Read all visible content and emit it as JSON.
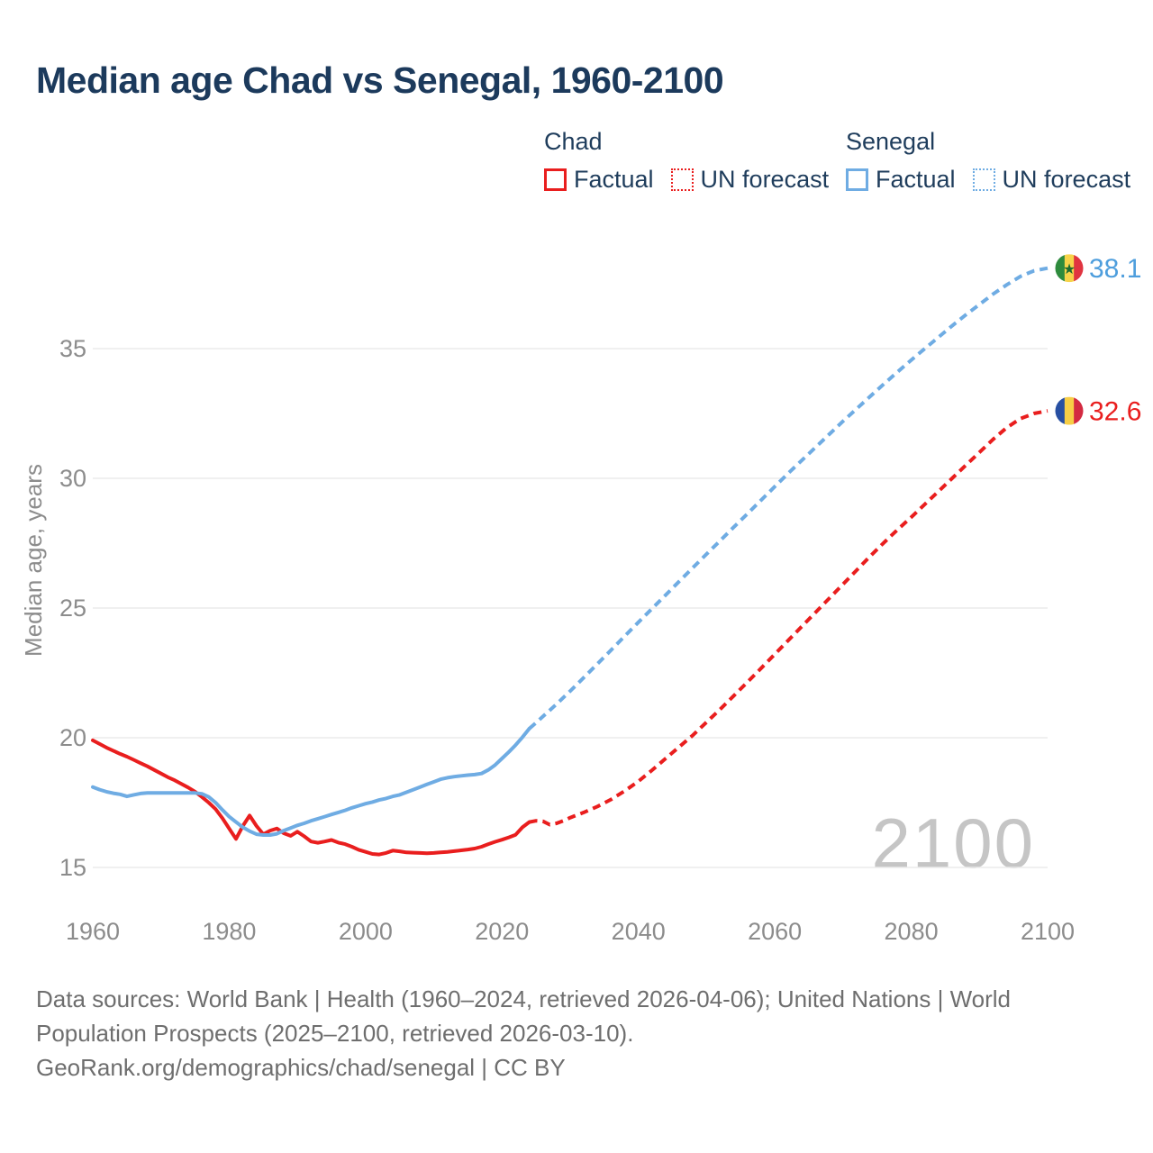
{
  "title": "Median age Chad vs Senegal, 1960-2100",
  "watermark": "2100",
  "footer": {
    "line1": "Data sources: World Bank | Health (1960–2024, retrieved 2026-04-06); United Nations | World",
    "line2": "Population Prospects (2025–2100, retrieved 2026-03-10).",
    "line3": "GeoRank.org/demographics/chad/senegal | CC BY"
  },
  "colors": {
    "chad_red": "#E91E1E",
    "senegal_blue": "#6FACE3",
    "senegal_label_blue": "#4E9EDD",
    "navy_text": "#1C3A5C",
    "gridline": "#ECECEC",
    "tick_text": "#8C8C8C",
    "footer_text": "#6E6E6E",
    "watermark_gray": "#C5C5C5"
  },
  "legend": {
    "groups": [
      {
        "name": "Chad",
        "color": "#E91E1E",
        "items": [
          {
            "label": "Factual",
            "style": "solid"
          },
          {
            "label": "UN forecast",
            "style": "dotted"
          }
        ]
      },
      {
        "name": "Senegal",
        "color": "#6FACE3",
        "items": [
          {
            "label": "Factual",
            "style": "solid"
          },
          {
            "label": "UN forecast",
            "style": "dotted"
          }
        ]
      }
    ]
  },
  "chart_data": {
    "type": "line",
    "title": "Median age Chad vs Senegal, 1960-2100",
    "xlabel": "",
    "ylabel": "Median age, years",
    "x_ticks": [
      1960,
      1980,
      2000,
      2020,
      2040,
      2060,
      2080,
      2100
    ],
    "y_ticks": [
      15,
      20,
      25,
      30,
      35
    ],
    "xlim": [
      1960,
      2100
    ],
    "ylim": [
      15,
      35
    ],
    "grid": "horizontal-only",
    "legend_position": "top-right",
    "series": [
      {
        "name": "Chad factual",
        "color": "#E91E1E",
        "dashed": false,
        "points": [
          [
            1960,
            19.9
          ],
          [
            1961,
            19.76
          ],
          [
            1962,
            19.62
          ],
          [
            1963,
            19.5
          ],
          [
            1964,
            19.38
          ],
          [
            1965,
            19.27
          ],
          [
            1966,
            19.15
          ],
          [
            1967,
            19.02
          ],
          [
            1968,
            18.9
          ],
          [
            1969,
            18.76
          ],
          [
            1970,
            18.62
          ],
          [
            1971,
            18.48
          ],
          [
            1972,
            18.36
          ],
          [
            1973,
            18.22
          ],
          [
            1974,
            18.08
          ],
          [
            1975,
            17.92
          ],
          [
            1976,
            17.72
          ],
          [
            1977,
            17.5
          ],
          [
            1978,
            17.25
          ],
          [
            1979,
            16.9
          ],
          [
            1980,
            16.5
          ],
          [
            1981,
            16.1
          ],
          [
            1982,
            16.6
          ],
          [
            1983,
            17.0
          ],
          [
            1984,
            16.6
          ],
          [
            1985,
            16.28
          ],
          [
            1986,
            16.42
          ],
          [
            1987,
            16.5
          ],
          [
            1988,
            16.32
          ],
          [
            1989,
            16.22
          ],
          [
            1990,
            16.38
          ],
          [
            1991,
            16.2
          ],
          [
            1992,
            16.0
          ],
          [
            1993,
            15.95
          ],
          [
            1994,
            16.0
          ],
          [
            1995,
            16.06
          ],
          [
            1996,
            15.96
          ],
          [
            1997,
            15.9
          ],
          [
            1998,
            15.8
          ],
          [
            1999,
            15.68
          ],
          [
            2000,
            15.6
          ],
          [
            2001,
            15.52
          ],
          [
            2002,
            15.5
          ],
          [
            2003,
            15.56
          ],
          [
            2004,
            15.65
          ],
          [
            2005,
            15.62
          ],
          [
            2006,
            15.58
          ],
          [
            2007,
            15.57
          ],
          [
            2008,
            15.56
          ],
          [
            2009,
            15.55
          ],
          [
            2010,
            15.56
          ],
          [
            2011,
            15.58
          ],
          [
            2012,
            15.6
          ],
          [
            2013,
            15.63
          ],
          [
            2014,
            15.66
          ],
          [
            2015,
            15.69
          ],
          [
            2016,
            15.73
          ],
          [
            2017,
            15.8
          ],
          [
            2018,
            15.9
          ],
          [
            2019,
            15.99
          ],
          [
            2020,
            16.07
          ],
          [
            2021,
            16.16
          ],
          [
            2022,
            16.26
          ],
          [
            2023,
            16.55
          ],
          [
            2024,
            16.75
          ]
        ]
      },
      {
        "name": "Chad UN forecast",
        "color": "#E91E1E",
        "dashed": true,
        "points": [
          [
            2024,
            16.75
          ],
          [
            2025,
            16.8
          ],
          [
            2026,
            16.78
          ],
          [
            2027,
            16.65
          ],
          [
            2028,
            16.7
          ],
          [
            2029,
            16.8
          ],
          [
            2030,
            16.92
          ],
          [
            2032,
            17.12
          ],
          [
            2034,
            17.35
          ],
          [
            2036,
            17.62
          ],
          [
            2038,
            17.95
          ],
          [
            2040,
            18.32
          ],
          [
            2042,
            18.75
          ],
          [
            2044,
            19.2
          ],
          [
            2046,
            19.65
          ],
          [
            2048,
            20.1
          ],
          [
            2050,
            20.6
          ],
          [
            2052,
            21.1
          ],
          [
            2054,
            21.62
          ],
          [
            2056,
            22.15
          ],
          [
            2058,
            22.68
          ],
          [
            2060,
            23.22
          ],
          [
            2062,
            23.76
          ],
          [
            2064,
            24.3
          ],
          [
            2066,
            24.84
          ],
          [
            2068,
            25.38
          ],
          [
            2070,
            25.92
          ],
          [
            2072,
            26.46
          ],
          [
            2074,
            27.0
          ],
          [
            2076,
            27.52
          ],
          [
            2078,
            28.02
          ],
          [
            2080,
            28.5
          ],
          [
            2082,
            29.0
          ],
          [
            2084,
            29.5
          ],
          [
            2086,
            30.0
          ],
          [
            2088,
            30.5
          ],
          [
            2090,
            31.0
          ],
          [
            2092,
            31.5
          ],
          [
            2094,
            31.95
          ],
          [
            2096,
            32.3
          ],
          [
            2098,
            32.5
          ],
          [
            2100,
            32.6
          ]
        ]
      },
      {
        "name": "Senegal factual",
        "color": "#6FACE3",
        "dashed": false,
        "points": [
          [
            1960,
            18.1
          ],
          [
            1961,
            18.0
          ],
          [
            1962,
            17.92
          ],
          [
            1963,
            17.86
          ],
          [
            1964,
            17.82
          ],
          [
            1965,
            17.74
          ],
          [
            1966,
            17.8
          ],
          [
            1967,
            17.85
          ],
          [
            1968,
            17.87
          ],
          [
            1969,
            17.87
          ],
          [
            1970,
            17.87
          ],
          [
            1971,
            17.87
          ],
          [
            1972,
            17.87
          ],
          [
            1973,
            17.87
          ],
          [
            1974,
            17.87
          ],
          [
            1975,
            17.87
          ],
          [
            1976,
            17.84
          ],
          [
            1977,
            17.72
          ],
          [
            1978,
            17.5
          ],
          [
            1979,
            17.22
          ],
          [
            1980,
            16.96
          ],
          [
            1981,
            16.75
          ],
          [
            1982,
            16.55
          ],
          [
            1983,
            16.4
          ],
          [
            1984,
            16.28
          ],
          [
            1985,
            16.25
          ],
          [
            1986,
            16.25
          ],
          [
            1987,
            16.3
          ],
          [
            1988,
            16.42
          ],
          [
            1989,
            16.52
          ],
          [
            1990,
            16.62
          ],
          [
            1991,
            16.7
          ],
          [
            1992,
            16.8
          ],
          [
            1993,
            16.88
          ],
          [
            1994,
            16.96
          ],
          [
            1995,
            17.04
          ],
          [
            1996,
            17.12
          ],
          [
            1997,
            17.2
          ],
          [
            1998,
            17.3
          ],
          [
            1999,
            17.38
          ],
          [
            2000,
            17.46
          ],
          [
            2001,
            17.52
          ],
          [
            2002,
            17.6
          ],
          [
            2003,
            17.66
          ],
          [
            2004,
            17.74
          ],
          [
            2005,
            17.8
          ],
          [
            2006,
            17.9
          ],
          [
            2007,
            18.0
          ],
          [
            2008,
            18.1
          ],
          [
            2009,
            18.2
          ],
          [
            2010,
            18.3
          ],
          [
            2011,
            18.4
          ],
          [
            2012,
            18.46
          ],
          [
            2013,
            18.5
          ],
          [
            2014,
            18.53
          ],
          [
            2015,
            18.56
          ],
          [
            2016,
            18.58
          ],
          [
            2017,
            18.62
          ],
          [
            2018,
            18.76
          ],
          [
            2019,
            18.95
          ],
          [
            2020,
            19.2
          ],
          [
            2021,
            19.45
          ],
          [
            2022,
            19.72
          ],
          [
            2023,
            20.02
          ],
          [
            2024,
            20.35
          ]
        ]
      },
      {
        "name": "Senegal UN forecast",
        "color": "#6FACE3",
        "dashed": true,
        "points": [
          [
            2024,
            20.35
          ],
          [
            2025,
            20.58
          ],
          [
            2026,
            20.82
          ],
          [
            2028,
            21.3
          ],
          [
            2030,
            21.8
          ],
          [
            2032,
            22.32
          ],
          [
            2034,
            22.85
          ],
          [
            2036,
            23.38
          ],
          [
            2038,
            23.92
          ],
          [
            2040,
            24.45
          ],
          [
            2042,
            24.98
          ],
          [
            2044,
            25.5
          ],
          [
            2046,
            26.03
          ],
          [
            2048,
            26.56
          ],
          [
            2050,
            27.08
          ],
          [
            2052,
            27.6
          ],
          [
            2054,
            28.12
          ],
          [
            2056,
            28.64
          ],
          [
            2058,
            29.16
          ],
          [
            2060,
            29.68
          ],
          [
            2062,
            30.2
          ],
          [
            2064,
            30.7
          ],
          [
            2066,
            31.2
          ],
          [
            2068,
            31.7
          ],
          [
            2070,
            32.2
          ],
          [
            2072,
            32.68
          ],
          [
            2074,
            33.16
          ],
          [
            2076,
            33.64
          ],
          [
            2078,
            34.1
          ],
          [
            2080,
            34.56
          ],
          [
            2082,
            35.0
          ],
          [
            2084,
            35.44
          ],
          [
            2086,
            35.88
          ],
          [
            2088,
            36.3
          ],
          [
            2090,
            36.7
          ],
          [
            2092,
            37.1
          ],
          [
            2094,
            37.46
          ],
          [
            2096,
            37.78
          ],
          [
            2098,
            38.0
          ],
          [
            2100,
            38.1
          ]
        ]
      }
    ],
    "end_labels": [
      {
        "text": "38.1",
        "value": 38.1,
        "color": "#4E9EDD",
        "flag": "senegal"
      },
      {
        "text": "32.6",
        "value": 32.6,
        "color": "#E91E1E",
        "flag": "chad"
      }
    ],
    "flags": {
      "senegal": {
        "stripes": [
          "#2E8B3D",
          "#F7D34A",
          "#E03440"
        ],
        "star": "#1E6B2E"
      },
      "chad": {
        "stripes": [
          "#274FA2",
          "#F7CE46",
          "#D32A41"
        ],
        "star": null
      }
    }
  }
}
